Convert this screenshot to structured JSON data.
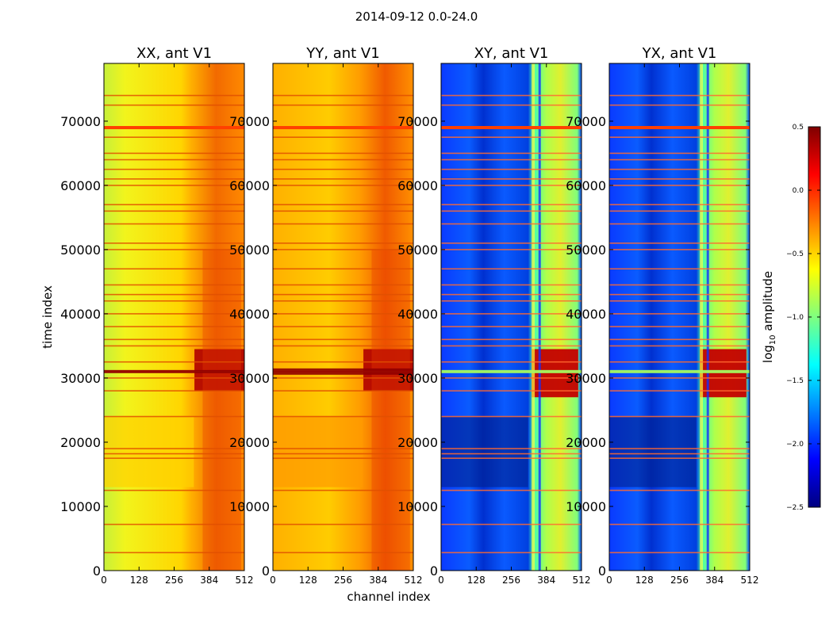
{
  "figure": {
    "suptitle": "2014-09-12 0.0-24.0",
    "ylabel": "time index",
    "xlabel": "channel index"
  },
  "chart_data": {
    "type": "heatmap",
    "title": "2014-09-12 0.0-24.0",
    "xlabel": "channel index",
    "ylabel": "time index",
    "xlim": [
      0,
      512
    ],
    "ylim": [
      0,
      79000
    ],
    "xticks": [
      "0",
      "128",
      "256",
      "384",
      "512"
    ],
    "yticks": [
      "0",
      "10000",
      "20000",
      "30000",
      "40000",
      "50000",
      "60000",
      "70000"
    ],
    "panels": [
      {
        "title": "XX, ant V1",
        "kind": "auto"
      },
      {
        "title": "YY, ant V1",
        "kind": "auto"
      },
      {
        "title": "XY, ant V1",
        "kind": "cross"
      },
      {
        "title": "YX, ant V1",
        "kind": "cross"
      }
    ],
    "flagged_time_rows": [
      2800,
      7200,
      12500,
      17500,
      18200,
      19000,
      24000,
      28000,
      30000,
      31000,
      32500,
      35000,
      36000,
      38000,
      40000,
      42000,
      43000,
      44500,
      47000,
      50000,
      51000,
      54000,
      56000,
      57000,
      60000,
      61000,
      62500,
      64000,
      65000,
      67500,
      69000,
      72500,
      74000
    ],
    "colorbar": {
      "label": "log10 amplitude",
      "label_main": "log",
      "label_sub": "10",
      "label_rest": " amplitude",
      "min": -2.5,
      "max": 0.5,
      "ticks": [
        "0.5",
        "0.0",
        "−0.5",
        "−1.0",
        "−1.5",
        "−2.0",
        "−2.5"
      ],
      "colormap": "jet"
    }
  }
}
